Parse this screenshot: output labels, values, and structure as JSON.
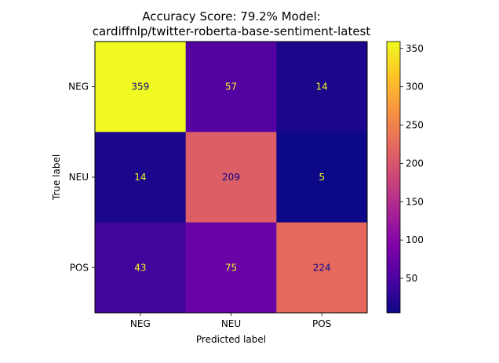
{
  "chart_data": {
    "type": "heatmap",
    "title_lines": [
      "Accuracy Score: 79.2% Model:",
      "cardiffnlp/twitter-roberta-base-sentiment-latest"
    ],
    "xlabel": "Predicted label",
    "ylabel": "True label",
    "x_categories": [
      "NEG",
      "NEU",
      "POS"
    ],
    "y_categories": [
      "NEG",
      "NEU",
      "POS"
    ],
    "values": [
      [
        359,
        57,
        14
      ],
      [
        14,
        209,
        5
      ],
      [
        43,
        75,
        224
      ]
    ],
    "colormap": "plasma",
    "colorbar": {
      "min": 5,
      "max": 359,
      "ticks": [
        50,
        100,
        150,
        200,
        250,
        300,
        350
      ]
    },
    "text_colors": {
      "dark_cell": "#f0f921",
      "light_cell": "#0d0887"
    }
  }
}
